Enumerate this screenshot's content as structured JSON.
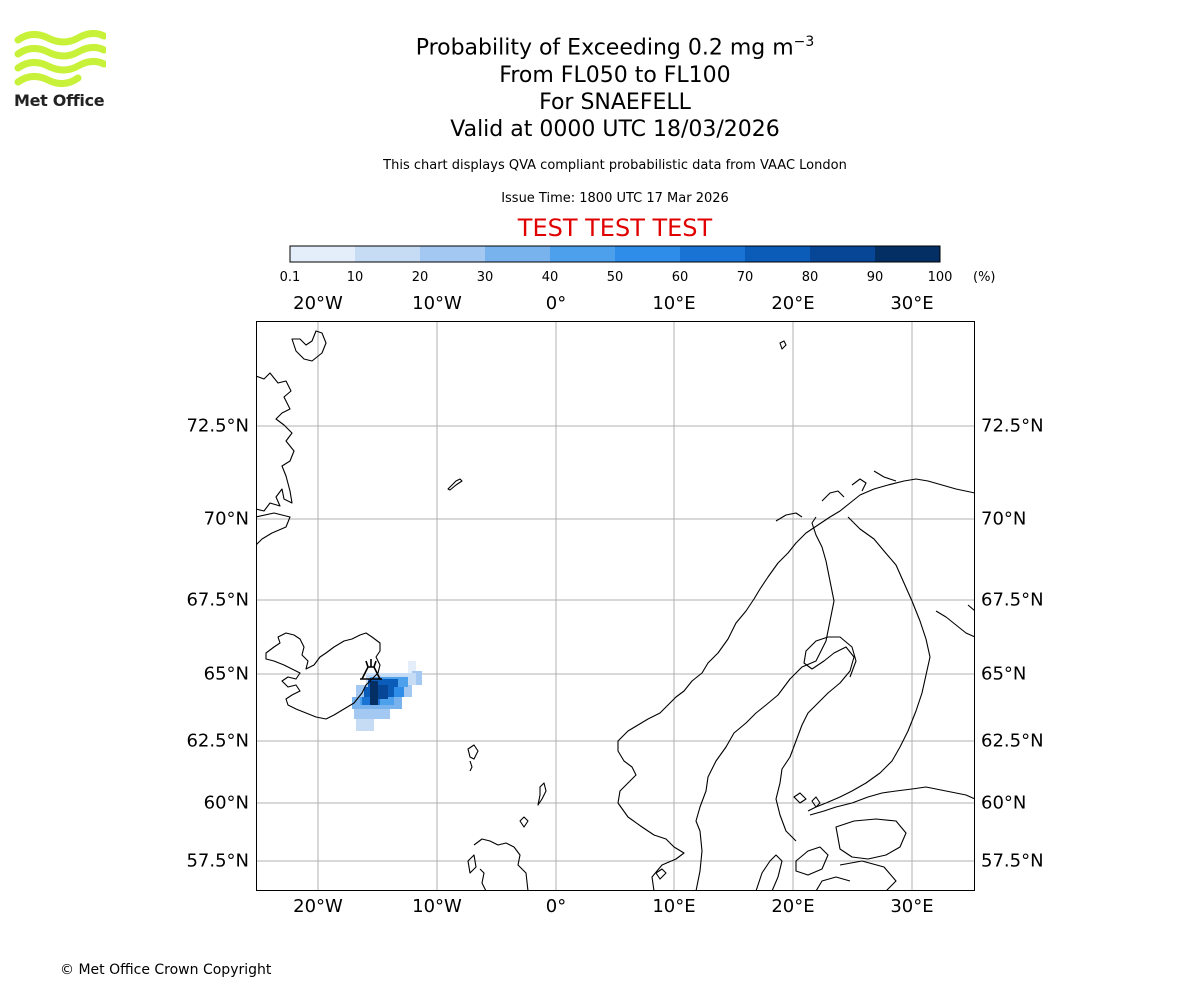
{
  "logo": {
    "brand": "Met Office",
    "color": "#c8f23a"
  },
  "title": {
    "line1_prefix": "Probability of Exceeding 0.2 mg m",
    "line1_sup": "−3",
    "line2": "From FL050 to FL100",
    "line3": "For SNAEFELL",
    "line4": "Valid at 0000 UTC 18/03/2026"
  },
  "subtitle": "This chart displays QVA compliant probabilistic data from VAAC London",
  "issue_time": "Issue Time: 1800 UTC 17 Mar 2026",
  "test_banner": "TEST TEST TEST",
  "colorbar": {
    "unit": "(%)",
    "ticks": [
      "0.1",
      "10",
      "20",
      "30",
      "40",
      "50",
      "60",
      "70",
      "80",
      "90",
      "100"
    ],
    "colors": [
      "#e3eefa",
      "#c6dcf5",
      "#a3c9f2",
      "#78b3ee",
      "#4da0ec",
      "#2e8de8",
      "#1873d5",
      "#0b5bb8",
      "#074697",
      "#042f65"
    ]
  },
  "map": {
    "lon_labels": [
      "20°W",
      "10°W",
      "0°",
      "10°E",
      "20°E",
      "30°E"
    ],
    "lat_labels": [
      "72.5°N",
      "70°N",
      "67.5°N",
      "65°N",
      "62.5°N",
      "60°N",
      "57.5°N"
    ],
    "volcano_name": "SNAEFELL"
  },
  "copyright": "© Met Office Crown Copyright"
}
